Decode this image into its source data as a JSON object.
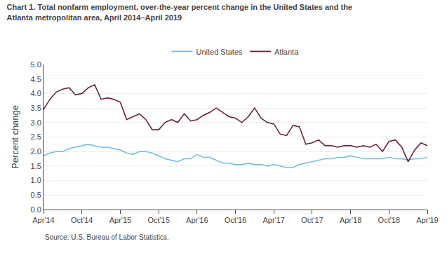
{
  "chart_data": {
    "type": "line",
    "title": "Chart 1. Total nonfarm employment, over-the-year percent change in the United States and the\nAtlanta metropolitan area, April 2014–April 2019",
    "ylabel": "Percent change",
    "annotations": [
      "Source: U.S. Bureau of Labor Statistics."
    ],
    "categories": [
      "Apr'14",
      null,
      null,
      null,
      null,
      null,
      "Oct'14",
      null,
      null,
      null,
      null,
      null,
      "Apr'15",
      null,
      null,
      null,
      null,
      null,
      "Oct'15",
      null,
      null,
      null,
      null,
      null,
      "Apr'16",
      null,
      null,
      null,
      null,
      null,
      "Oct'16",
      null,
      null,
      null,
      null,
      null,
      "Apr'17",
      null,
      null,
      null,
      null,
      null,
      "Oct'17",
      null,
      null,
      null,
      null,
      null,
      "Apr'18",
      null,
      null,
      null,
      null,
      null,
      "Oct'18",
      null,
      null,
      null,
      null,
      null,
      "Apr'19"
    ],
    "series": [
      {
        "name": "United States",
        "color": "#74C0E2",
        "values": [
          1.85,
          1.95,
          2.0,
          2.0,
          2.1,
          2.15,
          2.2,
          2.25,
          2.2,
          2.15,
          2.15,
          2.1,
          2.05,
          1.95,
          1.9,
          2.0,
          2.0,
          1.95,
          1.85,
          1.75,
          1.7,
          1.65,
          1.75,
          1.75,
          1.9,
          1.8,
          1.8,
          1.7,
          1.6,
          1.6,
          1.55,
          1.55,
          1.6,
          1.55,
          1.55,
          1.5,
          1.55,
          1.5,
          1.45,
          1.45,
          1.55,
          1.6,
          1.65,
          1.7,
          1.75,
          1.75,
          1.8,
          1.8,
          1.85,
          1.8,
          1.75,
          1.75,
          1.75,
          1.75,
          1.8,
          1.75,
          1.75,
          1.7,
          1.75,
          1.75,
          1.8
        ]
      },
      {
        "name": "Atlanta",
        "color": "#6B2040",
        "values": [
          3.45,
          3.8,
          4.05,
          4.15,
          4.2,
          3.95,
          4.0,
          4.2,
          4.3,
          3.8,
          3.85,
          3.8,
          3.7,
          3.1,
          3.2,
          3.3,
          3.1,
          2.75,
          2.75,
          3.0,
          3.1,
          3.0,
          3.3,
          3.05,
          3.1,
          3.25,
          3.35,
          3.5,
          3.35,
          3.2,
          3.15,
          3.0,
          3.2,
          3.5,
          3.15,
          3.0,
          2.95,
          2.6,
          2.55,
          2.9,
          2.85,
          2.25,
          2.3,
          2.4,
          2.2,
          2.2,
          2.15,
          2.2,
          2.2,
          2.15,
          2.2,
          2.15,
          2.25,
          2.0,
          2.35,
          2.4,
          2.15,
          1.65,
          2.05,
          2.3,
          2.2
        ]
      }
    ],
    "ylim": [
      0.0,
      5.0
    ],
    "yticks": [
      {
        "value": 0.0,
        "label": "0.0"
      },
      0.5,
      {
        "value": 1.0,
        "label": "1.0"
      },
      1.5,
      {
        "value": 2.0,
        "label": "2.0"
      },
      2.5,
      {
        "value": 3.0,
        "label": "3.0"
      },
      3.5,
      {
        "value": 4.0,
        "label": "4.0"
      },
      4.5,
      {
        "value": 5.0,
        "label": "5.0"
      }
    ],
    "grid": true,
    "legend": "top"
  }
}
